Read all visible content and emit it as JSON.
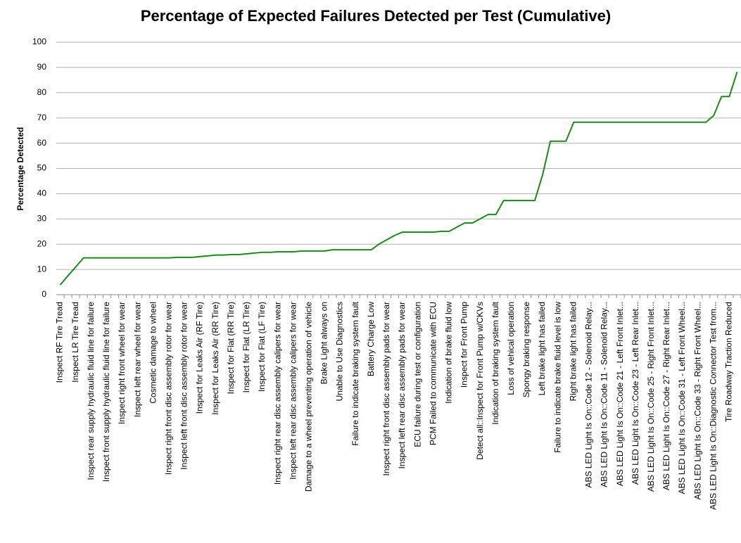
{
  "chart_data": {
    "type": "line",
    "title": "Percentage of Expected Failures Detected per Test (Cumulative)",
    "ylabel": "Percentage Detected",
    "color": "#1a8a1a",
    "grid": true,
    "ylim": [
      0,
      100
    ],
    "yticks": [
      0,
      10,
      20,
      30,
      40,
      50,
      60,
      70,
      80,
      90,
      100
    ],
    "categories": [
      "Inspect RF Tire Tread",
      null,
      "Inspect LR Tire Tread",
      null,
      "Inspect rear supply hydraulic fluid line for failure",
      null,
      "Inspect front supply hydraulic fluid line for failure",
      null,
      "Inspect right front wheel for wear",
      null,
      "Inspect left rear wheel for wear",
      null,
      "Cosmetic damage to wheel",
      null,
      "Inspect right front disc assembly rotor for wear",
      null,
      "Inspect left front disc assembly rotor for wear",
      null,
      "Inspect for Leaks Air (RF Tire)",
      null,
      "Inspect for Leaks Air (RR Tire)",
      null,
      "Inspect for Flat (RR Tire)",
      null,
      "Inspect for Flat (LR Tire)",
      null,
      "Inspect for Flat (LF Tire)",
      null,
      "Inspect right rear disc assembly calipers for wear",
      null,
      "Inspect left rear disc assembly calipers for wear",
      null,
      "Damage to a wheel preventing operation of vehicle",
      null,
      "Brake Light always on",
      null,
      "Unable to Use Diagnostics",
      null,
      "Failure to indicate braking system fault",
      null,
      "Battery Charge Low",
      null,
      "Inspect right front disc assembly pads for wear",
      null,
      "Inspect left rear disc assembly pads for wear",
      null,
      "ECU failure during test or configuration",
      null,
      "PCM Failed to communicate with ECU",
      null,
      "Indication of brake fluid low",
      null,
      "Inspect for Front Pump",
      null,
      "Detect all::Inspect for Front Pump w/CKVs",
      null,
      "Indication of braking system fault",
      null,
      "Loss of vehical operation",
      null,
      "Spongy braking response",
      null,
      "Left brake light has failed",
      null,
      "Failure to indicate brake fluid level is low",
      null,
      "Right brake light has failed",
      null,
      "ABS LED Light Is On::Code 12 - Solenoid Relay...",
      null,
      "ABS LED Light Is On::Code 11 - Solenoid Relay...",
      null,
      "ABS LED Light Is On::Code 21 - Left Front Inlet...",
      null,
      "ABS LED Light Is On::Code 23 - Left Rear Inlet...",
      null,
      "ABS LED Light Is On::Code 25 - Right Front Inlet...",
      null,
      "ABS LED Light Is On::Code 27 - Right Rear Inlet...",
      null,
      "ABS LED Light Is On::Code 31 - Left Front Wheel...",
      null,
      "ABS LED Light Is On::Code 33 - Right Front Wheel...",
      null,
      "ABS LED Light Is On::Diagnostic Connector Test from...",
      null,
      "Tire Roadway Traction Reduced",
      null
    ],
    "values": [
      3.9,
      7.5,
      11,
      14.6,
      14.6,
      14.6,
      14.6,
      14.6,
      14.6,
      14.6,
      14.6,
      14.6,
      14.6,
      14.6,
      14.6,
      14.8,
      14.8,
      14.8,
      15.1,
      15.4,
      15.7,
      15.7,
      15.9,
      15.9,
      16.2,
      16.5,
      16.8,
      16.8,
      17,
      17,
      17,
      17.3,
      17.3,
      17.3,
      17.3,
      17.8,
      17.8,
      17.8,
      17.8,
      17.8,
      17.8,
      20.1,
      21.8,
      23.5,
      24.8,
      24.8,
      24.8,
      24.8,
      24.8,
      25.1,
      25.1,
      26.8,
      28.4,
      28.4,
      30.1,
      31.8,
      31.8,
      37.3,
      37.3,
      37.3,
      37.3,
      37.3,
      47.5,
      60.8,
      60.8,
      60.8,
      68.3,
      68.3,
      68.3,
      68.3,
      68.3,
      68.3,
      68.3,
      68.3,
      68.3,
      68.3,
      68.3,
      68.3,
      68.3,
      68.3,
      68.3,
      68.3,
      68.3,
      68.3,
      71,
      78.5,
      78.5,
      88.2
    ]
  }
}
